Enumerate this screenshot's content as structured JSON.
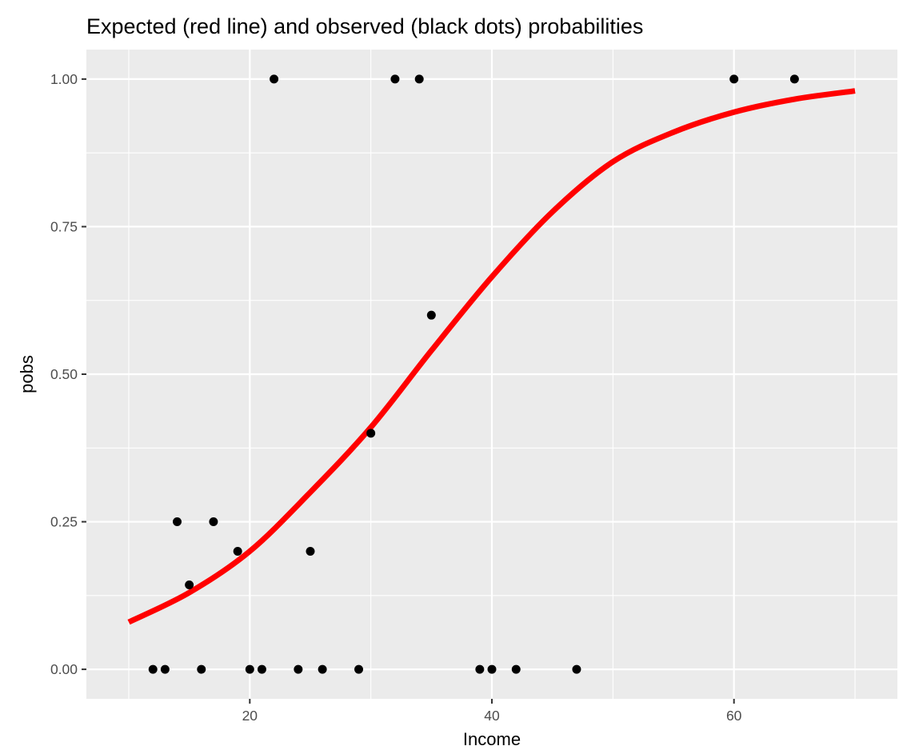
{
  "chart_data": {
    "type": "scatter",
    "title": "Expected (red line) and observed (black dots) probabilities",
    "xlabel": "Income",
    "ylabel": "pobs",
    "xlim": [
      6.5,
      73.5
    ],
    "ylim": [
      -0.05,
      1.05
    ],
    "x_ticks": [
      20,
      40,
      60
    ],
    "x_tick_labels": [
      "20",
      "40",
      "60"
    ],
    "x_minor_ticks": [
      10,
      30,
      50,
      70
    ],
    "y_ticks": [
      0,
      0.25,
      0.5,
      0.75,
      1
    ],
    "y_tick_labels": [
      "0.00",
      "0.25",
      "0.50",
      "0.75",
      "1.00"
    ],
    "y_minor_ticks": [
      0.125,
      0.375,
      0.625,
      0.875
    ],
    "grid": true,
    "panel_background": "#ebebeb",
    "grid_color": "#ffffff",
    "series": [
      {
        "type": "scatter",
        "color": "#000000",
        "points": [
          {
            "x": 12,
            "y": 0
          },
          {
            "x": 13,
            "y": 0
          },
          {
            "x": 14,
            "y": 0.25
          },
          {
            "x": 15,
            "y": 0.143
          },
          {
            "x": 16,
            "y": 0
          },
          {
            "x": 17,
            "y": 0.25
          },
          {
            "x": 19,
            "y": 0.2
          },
          {
            "x": 20,
            "y": 0
          },
          {
            "x": 21,
            "y": 0
          },
          {
            "x": 22,
            "y": 1
          },
          {
            "x": 24,
            "y": 0
          },
          {
            "x": 25,
            "y": 0.2
          },
          {
            "x": 26,
            "y": 0
          },
          {
            "x": 29,
            "y": 0
          },
          {
            "x": 30,
            "y": 0.4
          },
          {
            "x": 32,
            "y": 1
          },
          {
            "x": 34,
            "y": 1
          },
          {
            "x": 35,
            "y": 0.6
          },
          {
            "x": 39,
            "y": 0
          },
          {
            "x": 40,
            "y": 0
          },
          {
            "x": 42,
            "y": 0
          },
          {
            "x": 47,
            "y": 0
          },
          {
            "x": 60,
            "y": 1
          },
          {
            "x": 65,
            "y": 1
          }
        ]
      },
      {
        "type": "line",
        "color": "#ff0000",
        "points": [
          {
            "x": 10,
            "y": 0.08
          },
          {
            "x": 15,
            "y": 0.13
          },
          {
            "x": 20,
            "y": 0.2
          },
          {
            "x": 25,
            "y": 0.3
          },
          {
            "x": 30,
            "y": 0.41
          },
          {
            "x": 35,
            "y": 0.54
          },
          {
            "x": 40,
            "y": 0.665
          },
          {
            "x": 45,
            "y": 0.775
          },
          {
            "x": 50,
            "y": 0.86
          },
          {
            "x": 55,
            "y": 0.91
          },
          {
            "x": 60,
            "y": 0.944
          },
          {
            "x": 65,
            "y": 0.966
          },
          {
            "x": 70,
            "y": 0.98
          }
        ]
      }
    ]
  }
}
